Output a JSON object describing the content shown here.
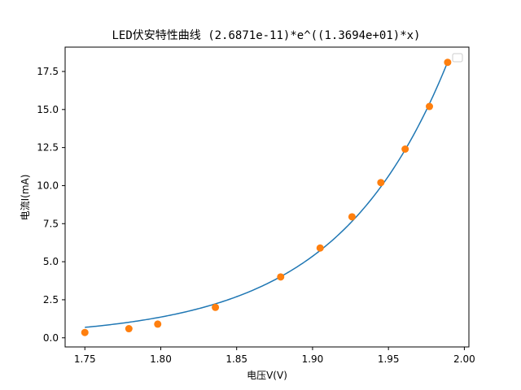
{
  "chart_data": {
    "type": "scatter",
    "title": "LED伏安特性曲线   (2.6871e-11)*e^((1.3694e+01)*x)",
    "xlabel": "电压V(V)",
    "ylabel": "电流I(mA)",
    "xlim": [
      1.737,
      2.003
    ],
    "ylim": [
      -0.6,
      19.1
    ],
    "xticks": [
      1.75,
      1.8,
      1.85,
      1.9,
      1.95,
      2.0
    ],
    "xtick_labels": [
      "1.75",
      "1.80",
      "1.85",
      "1.90",
      "1.95",
      "2.00"
    ],
    "yticks": [
      0,
      2.5,
      5,
      7.5,
      10,
      12.5,
      15,
      17.5
    ],
    "ytick_labels": [
      "0.0",
      "2.5",
      "5.0",
      "7.5",
      "10.0",
      "12.5",
      "15.0",
      "17.5"
    ],
    "grid": false,
    "legend": "top-right (empty)",
    "series": [
      {
        "kind": "scatter",
        "color": "#ff7f0e",
        "x": [
          1.75,
          1.779,
          1.798,
          1.836,
          1.879,
          1.905,
          1.926,
          1.945,
          1.961,
          1.977,
          1.989
        ],
        "y": [
          0.35,
          0.6,
          0.9,
          2.0,
          4.0,
          5.9,
          7.95,
          10.2,
          12.4,
          15.2,
          18.1
        ]
      },
      {
        "kind": "fit-line",
        "color": "#1f77b4",
        "formula": "2.6871e-11*exp(13.694*x)",
        "a": 2.6871e-11,
        "b": 13.694,
        "x_range": [
          1.75,
          1.989
        ]
      }
    ]
  }
}
